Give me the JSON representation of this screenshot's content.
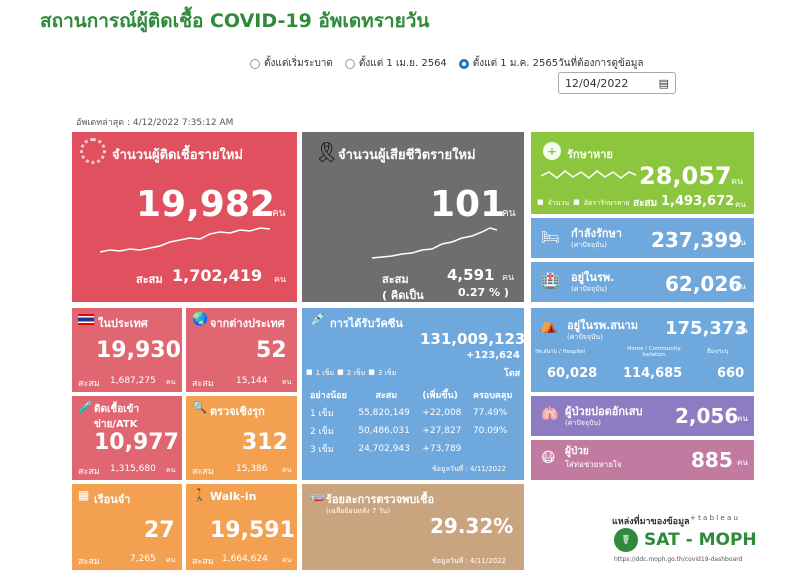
{
  "title": "สถานการณ์ผู้ติดเชื้อ COVID-19 อัพเดทรายวัน",
  "radio_options": [
    "ตั้งแต่เริ่มระบาด",
    "ตั้งแต่ 1 เม.ย. 2564",
    "ตั้งแต่ 1 ม.ค. 2565"
  ],
  "date_label": "วันที่ต้องการดูข้อมูล",
  "date_value": "12/04/2022",
  "updated": "อัพเดทล่าสุด : 4/12/2022 7:35:12 AM",
  "unit": "คน",
  "cum_label": "สะสม",
  "new_cases": {
    "label": "จำนวนผู้ติดเชื้อรายใหม่",
    "value": "19,982",
    "cum": "1,702,419",
    "color": "#e0505f"
  },
  "new_deaths": {
    "label": "จำนวนผู้เสียชีวิตรายใหม่",
    "value": "101",
    "cum": "4,591",
    "pct_label": "( คิดเป็น",
    "pct": "0.27 % )",
    "color": "#6e6e6e"
  },
  "recovered": {
    "label": "รักษาหาย",
    "value": "28,057",
    "cum": "1,493,672",
    "legend_a": "จำนวน",
    "legend_b": "อัตรารักษาหาย",
    "color": "#8cc63f"
  },
  "treating": {
    "label": "กำลังรักษา",
    "sub": "(ค่าปัจจุบัน)",
    "value": "237,399",
    "color": "#6fa8dc"
  },
  "hospital": {
    "label": "อยู่ในรพ.",
    "sub": "(ค่าปัจจุบัน)",
    "value": "62,026",
    "color": "#6fa8dc"
  },
  "field_hosp": {
    "label": "อยู่ในรพ.สนาม",
    "sub": "(ค่าปัจจุบัน)",
    "value": "175,373",
    "color": "#6fa8dc",
    "cols": [
      {
        "h": "รพ.สนาม / Hospitel",
        "v": "60,028"
      },
      {
        "h": "Home / Community Isolation",
        "v": "114,685"
      },
      {
        "h": "อื่นๆ/ระบุ",
        "v": "660"
      }
    ]
  },
  "severe": {
    "label": "ผู้ป่วยปอดอักเสบ",
    "sub": "(ค่าปัจจุบัน)",
    "value": "2,056",
    "color": "#8e7cc3"
  },
  "ventilator": {
    "label": "ผู้ป่วย",
    "label2": "ใส่ท่อช่วยหายใจ",
    "value": "885",
    "color": "#c27ba0"
  },
  "domestic": {
    "label": "ในประเทศ",
    "value": "19,930",
    "cum": "1,687,275",
    "color": "#e06672"
  },
  "imported": {
    "label": "จากต่างประเทศ",
    "value": "52",
    "cum": "15,144",
    "color": "#e06672"
  },
  "prison_atk": {
    "label": "ติดเชื้อเข้าข่าย/ATK",
    "value": "10,977",
    "cum": "1,315,680",
    "color": "#e06672"
  },
  "proactive": {
    "label": "ตรวจเชิงรุก",
    "value": "312",
    "cum": "15,386",
    "color": "#f3a051"
  },
  "prison": {
    "label": "เรือนจำ",
    "value": "27",
    "cum": "7,265",
    "color": "#f3a051"
  },
  "walkin": {
    "label": "Walk-in",
    "value": "19,591",
    "cum": "1,664,624",
    "color": "#f3a051"
  },
  "vaccine": {
    "label": "การได้รับวัคซีน",
    "total": "131,009,123",
    "delta": "+123,624",
    "unit": "โดส",
    "legend": [
      "1 เข็ม",
      "2 เข็ม",
      "3 เข็ม"
    ],
    "headers": [
      "อย่างน้อย",
      "สะสม",
      "(เพิ่มขึ้น)",
      "ครอบคลุม"
    ],
    "rows": [
      [
        "1 เข็ม",
        "55,820,149",
        "+22,008",
        "77.49%"
      ],
      [
        "2 เข็ม",
        "50,486,031",
        "+27,827",
        "70.09%"
      ],
      [
        "3 เข็ม",
        "24,702,943",
        "+73,789",
        ""
      ]
    ],
    "note": "ข้อมูลวันที่ : 4/11/2022",
    "color": "#6fa8dc"
  },
  "positivity": {
    "label": "ร้อยละการตรวจพบเชื้อ",
    "sub": "(เฉลี่ยย้อนหลัง 7 วัน)",
    "value": "29.32%",
    "note": "ข้อมูลวันที่ : 4/11/2022",
    "color": "#c9a57f"
  },
  "source": {
    "label": "แหล่งที่มาของข้อมูล",
    "tableau": "+ t a b l e a u",
    "brand": "SAT - MOPH",
    "url": "https://ddc.moph.go.th/covid19-dashboard"
  }
}
